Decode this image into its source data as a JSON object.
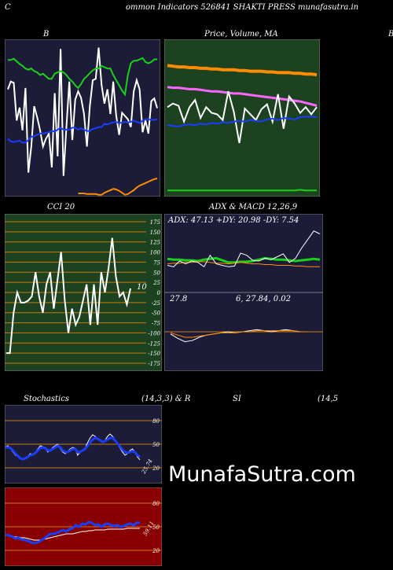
{
  "header": {
    "left_letter": "C",
    "title": "ommon  Indicators 526841 SHAKTI PRESS munafasutra.in"
  },
  "brand": "MunafaSutra.com",
  "colors": {
    "page_bg": "#000000",
    "panel_navy": "#1c1c38",
    "panel_green": "#1c4220",
    "panel_red": "#880000",
    "grid_orange": "#c87a0e",
    "blue": "#1a3cff",
    "green": "#19d119",
    "orange": "#ff8c00"
  },
  "chart_data": [
    {
      "id": "bb",
      "type": "line",
      "title": "B",
      "series": [
        {
          "color": "#ffffff",
          "values": [
            102,
            90,
            92,
            150,
            130,
            165,
            100,
            230,
            190,
            128,
            145,
            165,
            190,
            178,
            170,
            222,
            108,
            205,
            40,
            235,
            160,
            90,
            180,
            118,
            105,
            115,
            140,
            190,
            128,
            88,
            86,
            38,
            95,
            124,
            102,
            140,
            90,
            142,
            172,
            138,
            143,
            148,
            160,
            105,
            88,
            102,
            168,
            150,
            170,
            120,
            116,
            131
          ]
        },
        {
          "color": "#1a3cff",
          "values": [
            178,
            182,
            183,
            182,
            181,
            184,
            184,
            180,
            175,
            174,
            172,
            170,
            170,
            169,
            168,
            166,
            167,
            164,
            161,
            164,
            164,
            164,
            161,
            161,
            164,
            162,
            164,
            166,
            166,
            163,
            162,
            160,
            160,
            155,
            156,
            154,
            153,
            152,
            154,
            153,
            152,
            153,
            152,
            150,
            152,
            154,
            150,
            148,
            148,
            149,
            149,
            148
          ]
        },
        {
          "color": "#19d119",
          "values": [
            57,
            57,
            55,
            59,
            63,
            66,
            70,
            72,
            70,
            74,
            76,
            80,
            78,
            82,
            86,
            86,
            78,
            76,
            74,
            76,
            80,
            86,
            90,
            96,
            100,
            94,
            86,
            82,
            77,
            73,
            70,
            70,
            66,
            68,
            70,
            70,
            80,
            88,
            96,
            104,
            110,
            80,
            62,
            58,
            58,
            56,
            54,
            60,
            62,
            60,
            56,
            56
          ]
        },
        {
          "color": "#ff8c00",
          "values": [
            0,
            0,
            0,
            0,
            0,
            0,
            0,
            0,
            0,
            0,
            0,
            0,
            0,
            0,
            0,
            0,
            0,
            0,
            0,
            0,
            0,
            0,
            0,
            0,
            262,
            262,
            262,
            263,
            263,
            263,
            263,
            264,
            264,
            261,
            259,
            257,
            255,
            256,
            258,
            261,
            264,
            263,
            260,
            257,
            253,
            250,
            248,
            246,
            244,
            242,
            240,
            239
          ]
        }
      ]
    },
    {
      "id": "price",
      "type": "line",
      "title": "Price,  Volume,  MA",
      "series": [
        {
          "color": "#ff8c00",
          "values": [
            72,
            73,
            74,
            74,
            75,
            75,
            76,
            76,
            77,
            77,
            78,
            78,
            78,
            79,
            79,
            80,
            80,
            80,
            81,
            81,
            82,
            82,
            82,
            83,
            83,
            84,
            84,
            85
          ]
        },
        {
          "color": "#ff66ff",
          "values": [
            102,
            103,
            103,
            104,
            105,
            105,
            106,
            107,
            108,
            108,
            109,
            110,
            111,
            111,
            112,
            113,
            114,
            115,
            116,
            117,
            118,
            119,
            120,
            121,
            122,
            124,
            126,
            128
          ]
        },
        {
          "color": "#ffffff",
          "values": [
            130,
            125,
            128,
            150,
            130,
            120,
            145,
            130,
            138,
            140,
            148,
            108,
            136,
            180,
            132,
            140,
            148,
            133,
            126,
            150,
            112,
            160,
            115,
            125,
            138,
            130,
            140,
            130
          ]
        },
        {
          "color": "#1a3cff",
          "values": [
            155,
            156,
            157,
            155,
            154,
            155,
            153,
            154,
            152,
            153,
            151,
            152,
            150,
            149,
            150,
            148,
            149,
            150,
            147,
            146,
            148,
            145,
            146,
            147,
            144,
            143,
            143,
            144
          ]
        },
        {
          "color": "#19d119",
          "values": [
            246,
            246,
            246,
            246,
            246,
            246,
            246,
            246,
            246,
            246,
            246,
            246,
            246,
            246,
            246,
            246,
            246,
            246,
            246,
            246,
            246,
            246,
            246,
            246,
            245,
            246,
            246,
            246
          ]
        }
      ]
    },
    {
      "id": "cci",
      "type": "line",
      "title": "CCI 20",
      "value_label": "10",
      "yticks": [
        "175",
        "150",
        "125",
        "100",
        "75",
        "50",
        "25",
        "0",
        "-25",
        "-50",
        "-75",
        "-100",
        "-125",
        "-150",
        "-175"
      ],
      "series": [
        {
          "color": "#ffffff",
          "values": [
            -150,
            -150,
            -50,
            0,
            -25,
            -25,
            -20,
            -10,
            50,
            -10,
            -50,
            20,
            50,
            -40,
            30,
            100,
            -20,
            -100,
            -40,
            -80,
            -60,
            -20,
            20,
            -80,
            20,
            -80,
            50,
            0,
            60,
            135,
            40,
            -10,
            0,
            -30,
            10
          ]
        }
      ]
    },
    {
      "id": "adx",
      "type": "line",
      "title": "ADX  & MACD 12,26,9",
      "readout": "ADX: 47.13  +DY: 20.98  -DY: 7.54",
      "series": [
        {
          "color": "#19d119",
          "values": [
            47,
            46,
            46,
            45,
            45,
            44,
            46,
            47,
            48,
            45,
            42,
            42,
            43,
            43,
            44,
            46,
            48,
            47,
            46,
            46,
            45,
            44,
            45,
            46,
            47,
            46
          ]
        },
        {
          "color": "#ff8c00",
          "values": [
            40,
            41,
            41,
            42,
            42,
            43,
            43,
            42,
            41,
            41,
            40,
            41,
            42,
            41,
            40,
            40,
            39,
            39,
            38,
            38,
            38,
            37,
            37,
            36,
            36,
            36
          ]
        },
        {
          "color": "#ffffff",
          "values": [
            38,
            36,
            44,
            40,
            44,
            42,
            36,
            52,
            40,
            38,
            36,
            37,
            55,
            52,
            45,
            44,
            48,
            46,
            50,
            54,
            42,
            48,
            62,
            74,
            86,
            82
          ]
        }
      ]
    },
    {
      "id": "macd",
      "type": "line",
      "readout_left": "27.8",
      "readout_right": "6,  27.84,  0.02",
      "series": [
        {
          "color": "#ffffff",
          "values": [
            -2,
            -6,
            -9,
            -8,
            -5,
            -3,
            -2,
            -1,
            0,
            -1,
            0,
            1,
            2,
            1,
            0,
            1,
            2,
            1,
            0,
            0
          ]
        },
        {
          "color": "#ff8c00",
          "values": [
            -1,
            -3,
            -5,
            -5,
            -4,
            -3,
            -2,
            -1,
            -1,
            -1,
            0,
            0,
            1,
            1,
            1,
            1,
            1,
            1,
            0,
            0
          ]
        }
      ]
    },
    {
      "id": "stoch",
      "type": "line",
      "title": "Stochastics",
      "params": "(14,3,3) & R",
      "value_label": "25.74",
      "yticks": [
        "80",
        "50",
        "20"
      ],
      "series": [
        {
          "color": "#ffffff",
          "values": [
            47,
            48,
            44,
            40,
            36,
            34,
            32,
            30,
            33,
            35,
            38,
            36,
            40,
            44,
            48,
            47,
            44,
            40,
            42,
            46,
            48,
            50,
            44,
            40,
            38,
            41,
            44,
            46,
            45,
            36,
            40,
            43,
            45,
            52,
            58,
            62,
            60,
            56,
            54,
            52,
            55,
            60,
            63,
            60,
            56,
            50,
            45,
            40,
            36,
            38,
            42,
            44,
            40,
            34,
            30
          ]
        },
        {
          "color": "#1a3cff",
          "values": [
            46,
            46,
            45,
            42,
            38,
            35,
            32,
            31,
            32,
            34,
            36,
            37,
            39,
            42,
            45,
            46,
            45,
            42,
            42,
            44,
            46,
            48,
            46,
            42,
            40,
            40,
            42,
            44,
            44,
            40,
            40,
            42,
            44,
            48,
            52,
            56,
            58,
            57,
            55,
            53,
            54,
            56,
            58,
            58,
            55,
            51,
            47,
            43,
            40,
            39,
            40,
            41,
            40,
            36,
            34
          ]
        }
      ]
    },
    {
      "id": "rsi",
      "type": "line",
      "title": "SI",
      "params": "(14,5",
      "value_label": "59.11",
      "yticks": [
        "80",
        "50",
        "20"
      ],
      "series": [
        {
          "color": "#ffffff",
          "values": [
            39,
            39,
            38,
            37,
            37,
            36,
            36,
            35,
            34,
            33,
            33,
            33,
            34,
            35,
            36,
            37,
            38,
            39,
            40,
            41,
            41,
            41,
            42,
            43,
            44,
            44,
            45,
            45,
            46,
            46,
            46,
            46,
            47,
            47,
            47,
            47,
            47,
            47,
            48,
            48,
            48,
            48,
            48
          ]
        },
        {
          "color": "#1a3cff",
          "values": [
            40,
            39,
            38,
            35,
            36,
            34,
            33,
            32,
            30,
            29,
            30,
            32,
            35,
            38,
            41,
            41,
            42,
            44,
            46,
            44,
            47,
            48,
            52,
            50,
            54,
            53,
            56,
            55,
            52,
            53,
            50,
            53,
            54,
            52,
            51,
            52,
            50,
            51,
            53,
            54,
            52,
            55,
            55
          ]
        }
      ]
    }
  ]
}
